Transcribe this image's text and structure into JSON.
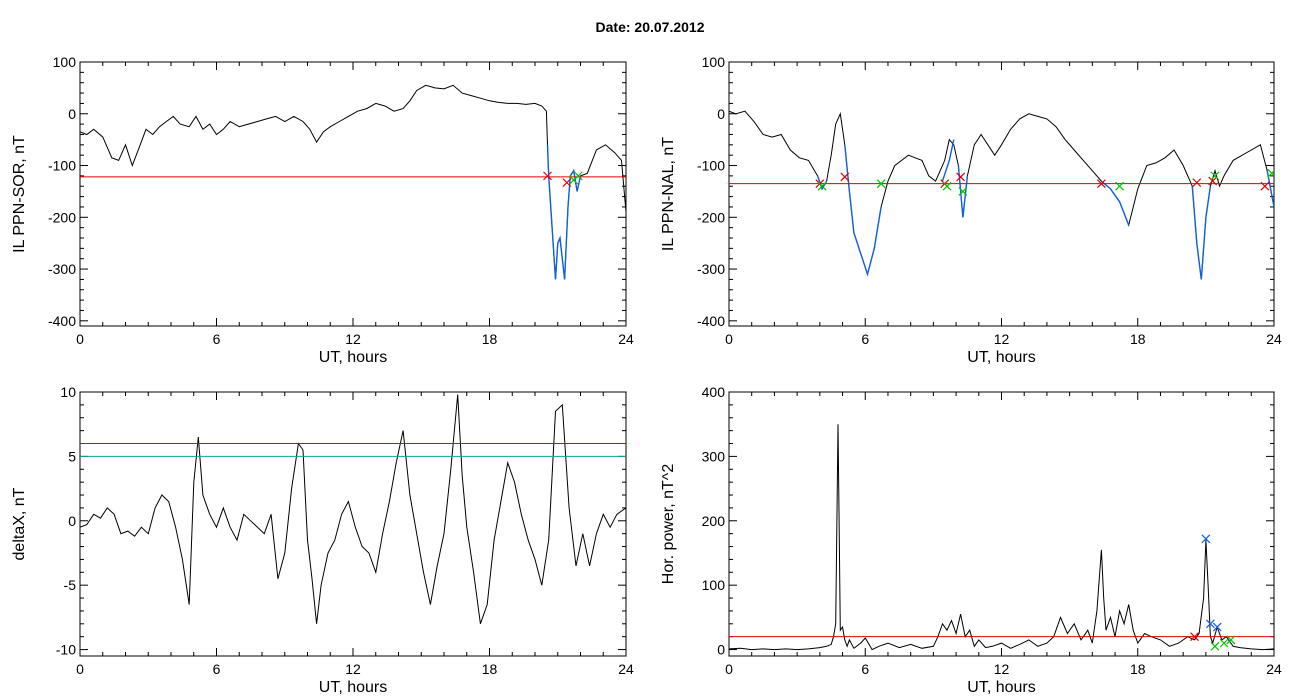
{
  "page": {
    "title": "Date:  20.07.2012"
  },
  "colors": {
    "threshold": "#e00000",
    "threshold2": "#10a0a0",
    "segment": "#1060e0",
    "cross_red": "#e00000",
    "cross_green": "#00c000",
    "cross_blue": "#1060e0",
    "trace": "#000000"
  },
  "chart_data": [
    {
      "id": "p1",
      "type": "line",
      "title": "",
      "xlabel": "UT, hours",
      "ylabel": "IL PPN-SOR, nT",
      "xlim": [
        0,
        24
      ],
      "ylim": [
        -410,
        100
      ],
      "xticks": [
        0,
        6,
        12,
        18,
        24
      ],
      "yticks": [
        -400,
        -300,
        -200,
        -100,
        0,
        100
      ],
      "grid": false,
      "thresholds": [
        {
          "y": -122,
          "color": "#e00000"
        }
      ],
      "series": [
        {
          "color": "#000000",
          "x": [
            0,
            0.3,
            0.6,
            1.0,
            1.4,
            1.7,
            2.0,
            2.3,
            2.6,
            2.9,
            3.2,
            3.5,
            3.8,
            4.1,
            4.4,
            4.8,
            5.1,
            5.4,
            5.7,
            6.0,
            6.3,
            6.6,
            7.0,
            7.4,
            7.8,
            8.2,
            8.6,
            9.0,
            9.4,
            9.8,
            10.1,
            10.4,
            10.7,
            11.0,
            11.4,
            11.8,
            12.2,
            12.6,
            13.0,
            13.4,
            13.8,
            14.2,
            14.5,
            14.8,
            15.2,
            15.6,
            16.0,
            16.4,
            16.8,
            17.2,
            17.6,
            18.0,
            18.4,
            18.8,
            19.2,
            19.6,
            20.0,
            20.3,
            20.5,
            20.55,
            20.6,
            20.75,
            20.9,
            21.0,
            21.1,
            21.3,
            21.45,
            21.55,
            21.7,
            21.85,
            22.0,
            22.3,
            22.7,
            23.1,
            23.5,
            23.8,
            24.0
          ],
          "y": [
            -35,
            -40,
            -30,
            -45,
            -85,
            -90,
            -60,
            -100,
            -65,
            -30,
            -40,
            -25,
            -15,
            -5,
            -20,
            -25,
            -5,
            -30,
            -20,
            -40,
            -30,
            -15,
            -25,
            -20,
            -15,
            -10,
            -5,
            -15,
            -5,
            -15,
            -30,
            -55,
            -35,
            -25,
            -15,
            -5,
            5,
            10,
            20,
            15,
            5,
            10,
            25,
            45,
            55,
            50,
            48,
            55,
            40,
            35,
            30,
            25,
            22,
            20,
            20,
            18,
            20,
            15,
            5,
            -60,
            -120,
            -220,
            -320,
            -250,
            -240,
            -320,
            -180,
            -120,
            -110,
            -150,
            -120,
            -115,
            -70,
            -60,
            -75,
            -90,
            -190
          ]
        }
      ],
      "segments": [
        {
          "x": [
            20.55,
            20.6,
            20.75,
            20.9,
            21.0,
            21.1,
            21.3,
            21.45,
            21.55
          ],
          "y": [
            -60,
            -120,
            -220,
            -320,
            -250,
            -240,
            -320,
            -180,
            -120
          ]
        },
        {
          "x": [
            21.55,
            21.7,
            21.85,
            22.0
          ],
          "y": [
            -120,
            -110,
            -150,
            -120
          ]
        }
      ],
      "markers": [
        {
          "x": 20.55,
          "y": -120,
          "color": "#e00000"
        },
        {
          "x": 21.4,
          "y": -133,
          "color": "#e00000"
        },
        {
          "x": 21.7,
          "y": -128,
          "color": "#00c000"
        },
        {
          "x": 21.9,
          "y": -120,
          "color": "#00c000"
        }
      ]
    },
    {
      "id": "p2",
      "type": "line",
      "title": "",
      "xlabel": "UT, hours",
      "ylabel": "IL PPN-NAL, nT",
      "xlim": [
        0,
        24
      ],
      "ylim": [
        -410,
        100
      ],
      "xticks": [
        0,
        6,
        12,
        18,
        24
      ],
      "yticks": [
        -400,
        -300,
        -200,
        -100,
        0,
        100
      ],
      "grid": false,
      "thresholds": [
        {
          "y": -135,
          "color": "#e00000"
        }
      ],
      "series": [
        {
          "color": "#000000",
          "x": [
            0,
            0.3,
            0.7,
            1.1,
            1.5,
            1.9,
            2.3,
            2.7,
            3.1,
            3.5,
            3.9,
            4.1,
            4.3,
            4.5,
            4.7,
            4.9,
            5.1,
            5.3,
            5.5,
            5.8,
            6.1,
            6.4,
            6.7,
            7.0,
            7.3,
            7.6,
            7.9,
            8.2,
            8.5,
            8.8,
            9.1,
            9.5,
            9.7,
            9.9,
            10.1,
            10.3,
            10.5,
            10.8,
            11.1,
            11.4,
            11.7,
            12.0,
            12.4,
            12.8,
            13.2,
            13.6,
            14.0,
            14.4,
            14.8,
            15.2,
            15.6,
            16.0,
            16.4,
            16.8,
            17.2,
            17.6,
            18.0,
            18.4,
            18.8,
            19.2,
            19.6,
            20.0,
            20.4,
            20.6,
            20.8,
            21.0,
            21.2,
            21.4,
            21.6,
            21.8,
            22.2,
            22.6,
            23.0,
            23.4,
            23.7,
            24.0
          ],
          "y": [
            5,
            0,
            5,
            -15,
            -40,
            -45,
            -40,
            -70,
            -85,
            -90,
            -120,
            -145,
            -130,
            -80,
            -20,
            0,
            -60,
            -150,
            -230,
            -270,
            -310,
            -260,
            -180,
            -130,
            -100,
            -90,
            -80,
            -85,
            -90,
            -120,
            -130,
            -90,
            -50,
            -60,
            -100,
            -200,
            -120,
            -60,
            -40,
            -60,
            -80,
            -60,
            -30,
            -10,
            0,
            -5,
            -10,
            -25,
            -50,
            -70,
            -90,
            -110,
            -130,
            -145,
            -170,
            -215,
            -145,
            -100,
            -95,
            -85,
            -70,
            -100,
            -140,
            -250,
            -320,
            -200,
            -140,
            -110,
            -140,
            -120,
            -90,
            -80,
            -70,
            -60,
            -110,
            -180
          ]
        }
      ],
      "segments": [
        {
          "x": [
            3.9,
            4.1,
            4.3
          ],
          "y": [
            -120,
            -145,
            -130
          ]
        },
        {
          "x": [
            5.1,
            5.3,
            5.5,
            5.8,
            6.1,
            6.4,
            6.7
          ],
          "y": [
            -60,
            -150,
            -230,
            -270,
            -310,
            -260,
            -180
          ]
        },
        {
          "x": [
            9.4,
            9.7,
            9.9
          ],
          "y": [
            -130,
            -90,
            -50
          ]
        },
        {
          "x": [
            10.1,
            10.3,
            10.5
          ],
          "y": [
            -100,
            -200,
            -120
          ]
        },
        {
          "x": [
            16.4,
            16.8,
            17.2,
            17.6
          ],
          "y": [
            -130,
            -145,
            -170,
            -215
          ]
        },
        {
          "x": [
            20.4,
            20.6,
            20.8,
            21.0,
            21.2
          ],
          "y": [
            -140,
            -250,
            -320,
            -200,
            -140
          ]
        },
        {
          "x": [
            23.7,
            24.0
          ],
          "y": [
            -110,
            -180
          ]
        }
      ],
      "markers": [
        {
          "x": 4.0,
          "y": -135,
          "color": "#e00000"
        },
        {
          "x": 5.1,
          "y": -122,
          "color": "#e00000"
        },
        {
          "x": 9.5,
          "y": -135,
          "color": "#e00000"
        },
        {
          "x": 10.2,
          "y": -122,
          "color": "#e00000"
        },
        {
          "x": 16.4,
          "y": -135,
          "color": "#e00000"
        },
        {
          "x": 20.6,
          "y": -133,
          "color": "#e00000"
        },
        {
          "x": 21.3,
          "y": -130,
          "color": "#e00000"
        },
        {
          "x": 23.6,
          "y": -140,
          "color": "#e00000"
        },
        {
          "x": 4.1,
          "y": -140,
          "color": "#00c000"
        },
        {
          "x": 6.7,
          "y": -135,
          "color": "#00c000"
        },
        {
          "x": 9.6,
          "y": -140,
          "color": "#00c000"
        },
        {
          "x": 10.3,
          "y": -150,
          "color": "#00c000"
        },
        {
          "x": 17.2,
          "y": -140,
          "color": "#00c000"
        },
        {
          "x": 21.4,
          "y": -120,
          "color": "#00c000"
        },
        {
          "x": 23.9,
          "y": -115,
          "color": "#00c000"
        }
      ]
    },
    {
      "id": "p3",
      "type": "line",
      "title": "",
      "xlabel": "UT, hours",
      "ylabel": "deltaX, nT",
      "xlim": [
        0,
        24
      ],
      "ylim": [
        -10.5,
        10
      ],
      "xticks": [
        0,
        6,
        12,
        18,
        24
      ],
      "yticks": [
        -10,
        -5,
        0,
        5,
        10
      ],
      "grid": false,
      "thresholds": [
        {
          "y": 6,
          "color": "#e00000"
        },
        {
          "y": 5,
          "color": "#10a0a0"
        }
      ],
      "series": [
        {
          "color": "#000000",
          "x": [
            0,
            0.3,
            0.6,
            0.9,
            1.2,
            1.5,
            1.8,
            2.1,
            2.4,
            2.7,
            3.0,
            3.3,
            3.6,
            3.9,
            4.2,
            4.5,
            4.8,
            5.0,
            5.2,
            5.4,
            5.7,
            6.0,
            6.3,
            6.6,
            6.9,
            7.2,
            7.5,
            7.8,
            8.1,
            8.4,
            8.7,
            9.0,
            9.3,
            9.6,
            9.8,
            10.0,
            10.2,
            10.4,
            10.6,
            10.9,
            11.2,
            11.5,
            11.8,
            12.1,
            12.4,
            12.7,
            13.0,
            13.3,
            13.6,
            13.9,
            14.2,
            14.5,
            14.8,
            15.1,
            15.4,
            15.7,
            16.0,
            16.3,
            16.6,
            16.8,
            17.0,
            17.3,
            17.6,
            17.9,
            18.2,
            18.5,
            18.8,
            19.1,
            19.4,
            19.7,
            20.0,
            20.3,
            20.6,
            20.9,
            21.2,
            21.5,
            21.8,
            22.1,
            22.4,
            22.7,
            23.0,
            23.3,
            23.6,
            24.0
          ],
          "y": [
            -0.5,
            -0.3,
            0.5,
            0.2,
            1.0,
            0.5,
            -1.0,
            -0.8,
            -1.2,
            -0.5,
            -1.0,
            1.0,
            2.0,
            1.5,
            -0.5,
            -3.0,
            -6.5,
            3.0,
            6.5,
            2.0,
            0.5,
            -0.5,
            1.0,
            -0.5,
            -1.5,
            0.5,
            0.0,
            -0.5,
            -1.0,
            0.5,
            -4.5,
            -2.5,
            2.5,
            6.0,
            5.5,
            -1.5,
            -4.5,
            -8.0,
            -5.0,
            -2.5,
            -1.5,
            0.5,
            1.5,
            -0.5,
            -2.0,
            -2.5,
            -4.0,
            -1.0,
            1.5,
            4.5,
            7.0,
            2.0,
            -1.0,
            -4.0,
            -6.5,
            -3.5,
            -1.0,
            4.0,
            9.8,
            3.5,
            -0.5,
            -4.0,
            -8.0,
            -6.5,
            -1.5,
            1.5,
            4.5,
            3.0,
            0.5,
            -1.5,
            -3.0,
            -5.0,
            -1.5,
            8.5,
            9.0,
            1.0,
            -3.5,
            -1.0,
            -3.5,
            -1.0,
            0.5,
            -0.5,
            0.5,
            1.0
          ]
        }
      ],
      "segments": [],
      "markers": []
    },
    {
      "id": "p4",
      "type": "line",
      "title": "",
      "xlabel": "UT, hours",
      "ylabel": "Hor. power, nT^2",
      "xlim": [
        0,
        24
      ],
      "ylim": [
        -10,
        400
      ],
      "xticks": [
        0,
        6,
        12,
        18,
        24
      ],
      "yticks": [
        0,
        100,
        200,
        300,
        400
      ],
      "grid": false,
      "thresholds": [
        {
          "y": 20,
          "color": "#e00000"
        }
      ],
      "series": [
        {
          "color": "#000000",
          "x": [
            0,
            0.5,
            1.0,
            1.5,
            2.0,
            2.5,
            3.0,
            3.5,
            4.0,
            4.3,
            4.5,
            4.6,
            4.7,
            4.75,
            4.8,
            4.85,
            4.9,
            5.0,
            5.1,
            5.2,
            5.3,
            5.5,
            5.8,
            6.0,
            6.3,
            6.6,
            7.0,
            7.5,
            8.0,
            8.5,
            9.0,
            9.2,
            9.4,
            9.6,
            9.8,
            10.0,
            10.2,
            10.4,
            10.6,
            10.8,
            11.0,
            11.3,
            11.6,
            12.0,
            12.4,
            12.8,
            13.2,
            13.6,
            14.0,
            14.3,
            14.6,
            14.9,
            15.2,
            15.5,
            15.8,
            16.0,
            16.2,
            16.4,
            16.5,
            16.6,
            16.8,
            17.0,
            17.2,
            17.4,
            17.6,
            17.8,
            18.0,
            18.3,
            18.6,
            19.0,
            19.4,
            19.8,
            20.2,
            20.5,
            20.7,
            20.9,
            21.0,
            21.1,
            21.2,
            21.3,
            21.5,
            21.7,
            21.9,
            22.2,
            22.5,
            23.0,
            23.5,
            24.0
          ],
          "y": [
            1,
            2,
            0,
            1,
            0,
            1,
            0,
            1,
            3,
            5,
            8,
            20,
            40,
            200,
            350,
            200,
            30,
            35,
            15,
            5,
            15,
            2,
            10,
            18,
            0,
            5,
            10,
            3,
            8,
            2,
            5,
            20,
            40,
            30,
            45,
            25,
            55,
            20,
            30,
            5,
            15,
            3,
            5,
            10,
            2,
            8,
            15,
            5,
            10,
            20,
            50,
            25,
            40,
            15,
            30,
            10,
            60,
            155,
            80,
            30,
            50,
            20,
            60,
            40,
            70,
            30,
            10,
            25,
            20,
            15,
            5,
            10,
            20,
            15,
            25,
            80,
            170,
            100,
            20,
            10,
            35,
            15,
            20,
            5,
            3,
            1,
            0,
            1
          ]
        }
      ],
      "segments": [],
      "markers": [
        {
          "x": 20.5,
          "y": 20,
          "color": "#e00000"
        },
        {
          "x": 21.0,
          "y": 172,
          "color": "#1060e0"
        },
        {
          "x": 21.2,
          "y": 40,
          "color": "#1060e0"
        },
        {
          "x": 21.5,
          "y": 35,
          "color": "#1060e0"
        },
        {
          "x": 21.4,
          "y": 5,
          "color": "#00c000"
        },
        {
          "x": 21.8,
          "y": 10,
          "color": "#00c000"
        },
        {
          "x": 22.1,
          "y": 15,
          "color": "#00c000"
        }
      ]
    }
  ]
}
